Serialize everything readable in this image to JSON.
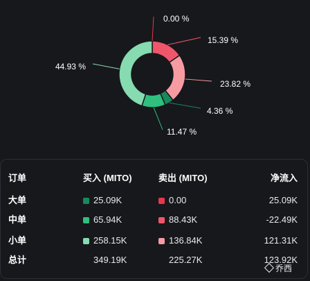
{
  "colors": {
    "background": "#17181c",
    "buy_large": "#168a5a",
    "buy_medium": "#2fbf7e",
    "buy_small": "#86dbb0",
    "sell_large": "#e8364f",
    "sell_medium": "#f0566b",
    "sell_small": "#f79ba3"
  },
  "chart_data": {
    "type": "pie",
    "donut": true,
    "unit": "%",
    "slices": [
      {
        "key": "sell_large",
        "value": 0.0,
        "label": "0.00 %",
        "color": "#e8364f"
      },
      {
        "key": "sell_medium",
        "value": 15.39,
        "label": "15.39 %",
        "color": "#f0566b"
      },
      {
        "key": "sell_small",
        "value": 23.82,
        "label": "23.82 %",
        "color": "#f79ba3"
      },
      {
        "key": "buy_large",
        "value": 4.36,
        "label": "4.36 %",
        "color": "#168a5a"
      },
      {
        "key": "buy_medium",
        "value": 11.47,
        "label": "11.47 %",
        "color": "#2fbf7e"
      },
      {
        "key": "buy_small",
        "value": 44.93,
        "label": "44.93 %",
        "color": "#86dbb0"
      }
    ]
  },
  "table": {
    "headers": {
      "order": "订单",
      "buy": "买入 (MITO)",
      "sell": "卖出 (MITO)",
      "net": "净流入"
    },
    "rows": [
      {
        "label": "大单",
        "buy": "25.09K",
        "sell": "0.00",
        "net": "25.09K",
        "buy_color": "#168a5a",
        "sell_color": "#e8364f"
      },
      {
        "label": "中单",
        "buy": "65.94K",
        "sell": "88.43K",
        "net": "-22.49K",
        "buy_color": "#2fbf7e",
        "sell_color": "#f0566b"
      },
      {
        "label": "小单",
        "buy": "258.15K",
        "sell": "136.84K",
        "net": "121.31K",
        "buy_color": "#86dbb0",
        "sell_color": "#f79ba3"
      }
    ],
    "total": {
      "label": "总计",
      "buy": "349.19K",
      "sell": "225.27K",
      "net": "123.92K"
    }
  },
  "watermark": {
    "icon": "diamond-logo-icon",
    "text": "乔西"
  }
}
